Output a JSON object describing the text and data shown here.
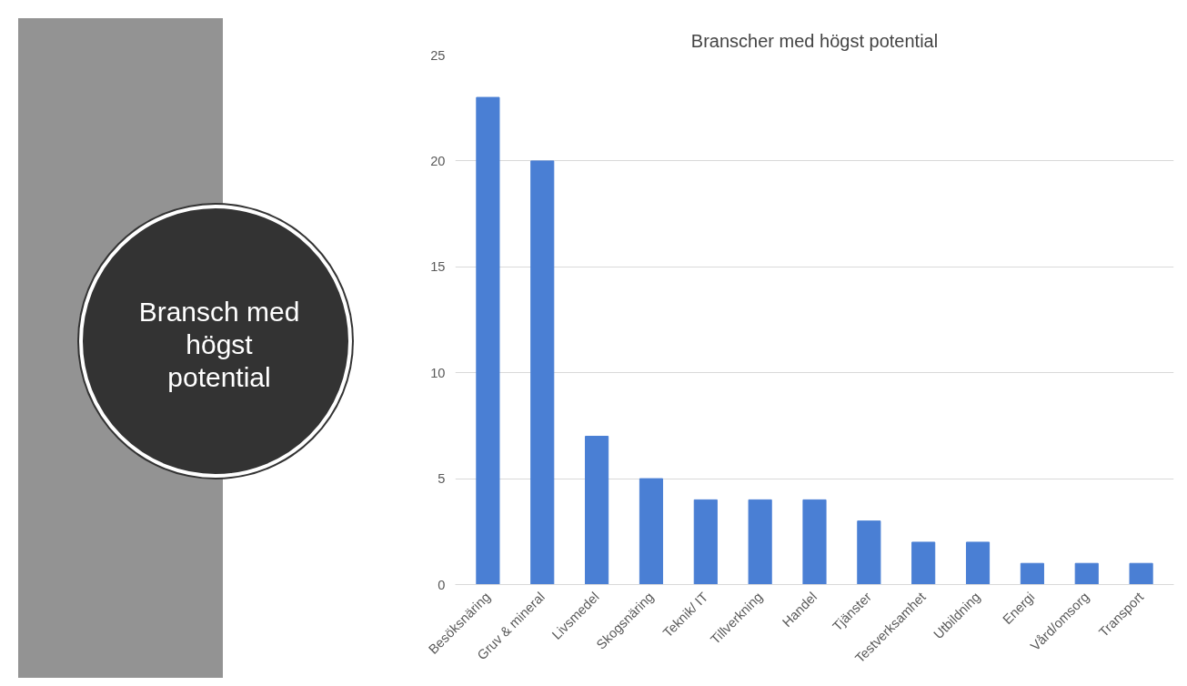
{
  "chart_data": {
    "type": "bar",
    "title": "Branscher med högst potential",
    "annotations": [
      "Bransch med högst potential"
    ],
    "categories": [
      "Besöksnäring",
      "Gruv & mineral",
      "Livsmedel",
      "Skogsnäring",
      "Teknik/ IT",
      "Tillverkning",
      "Handel",
      "Tjänster",
      "Testverksamhet",
      "Utbildning",
      "Energi",
      "Vård/omsorg",
      "Transport"
    ],
    "values": [
      23,
      20,
      7,
      5,
      4,
      4,
      4,
      3,
      2,
      2,
      1,
      1,
      1
    ],
    "color": "#4a7fd4",
    "ylim": [
      0,
      25
    ],
    "yticks": [
      0,
      5,
      10,
      15,
      20,
      25
    ],
    "grid": "y"
  }
}
